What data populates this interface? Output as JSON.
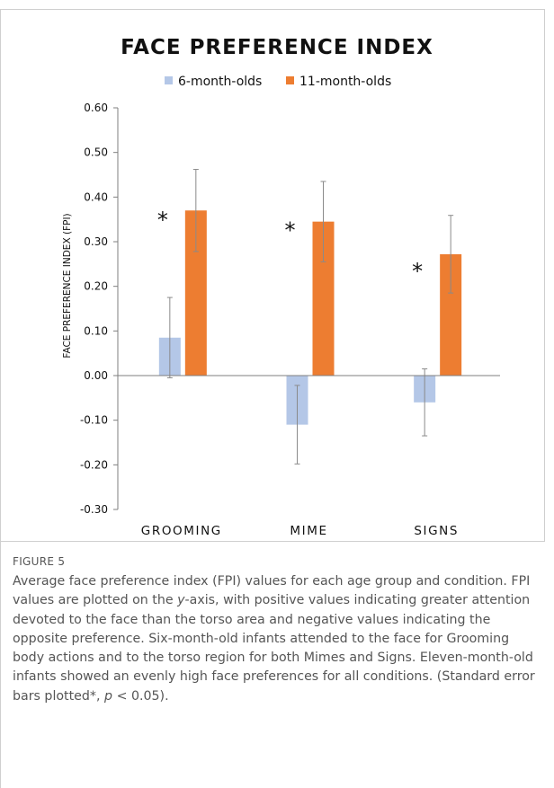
{
  "figure": {
    "label": "FIGURE 5",
    "caption_parts": [
      "Average face preference index (FPI) values for each age group and condition. FPI values are plotted on the ",
      "y",
      "-axis, with positive values indicating greater attention devoted to the face than the torso area and negative values indicating the opposite preference. Six-month-old infants attended to the face for Grooming body actions and to the torso region for both Mimes and Signs. Eleven-month-old infants showed an evenly high face preferences for all conditions. (Standard error bars plotted*, ",
      "p",
      " < 0.05)."
    ]
  },
  "chart_data": {
    "type": "bar",
    "title": "FACE PREFERENCE INDEX",
    "xlabel": "",
    "ylabel": "FACE PREFERENCE INDEX (FPI)",
    "categories": [
      "GROOMING",
      "MIME",
      "SIGNS"
    ],
    "ylim": [
      -0.3,
      0.6
    ],
    "yticks": [
      "0.60",
      "0.50",
      "0.40",
      "0.30",
      "0.20",
      "0.10",
      "0.00",
      "-0.10",
      "-0.20",
      "-0.30"
    ],
    "ytick_values": [
      0.6,
      0.5,
      0.4,
      0.3,
      0.2,
      0.1,
      0.0,
      -0.1,
      -0.2,
      -0.3
    ],
    "legend_position": "top",
    "grid": false,
    "series": [
      {
        "name": "6-month-olds",
        "color": "#b4c7e7",
        "values": [
          0.085,
          -0.11,
          -0.06
        ],
        "errors": [
          0.09,
          0.088,
          0.075
        ]
      },
      {
        "name": "11-month-olds",
        "color": "#ed7d31",
        "values": [
          0.37,
          0.345,
          0.272
        ],
        "errors": [
          0.092,
          0.09,
          0.087
        ]
      }
    ],
    "annotations": [
      {
        "text": "*",
        "category": "GROOMING"
      },
      {
        "text": "*",
        "category": "MIME"
      },
      {
        "text": "*",
        "category": "SIGNS"
      }
    ]
  }
}
